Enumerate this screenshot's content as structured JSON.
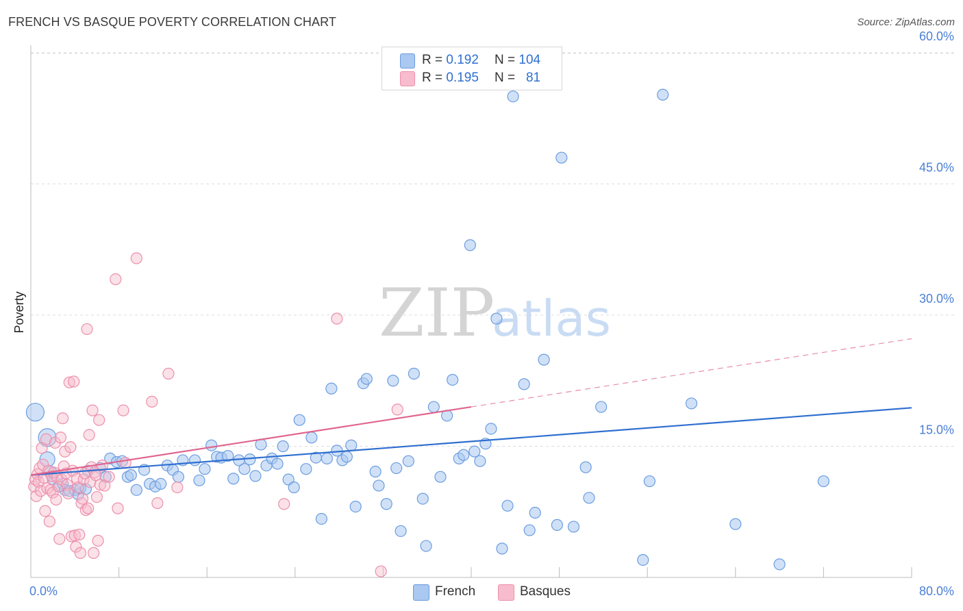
{
  "title": "FRENCH VS BASQUE POVERTY CORRELATION CHART",
  "source": "Source: ZipAtlas.com",
  "watermark": {
    "zip": "ZIP",
    "atlas": "atlas"
  },
  "legend": {
    "rows": [
      {
        "r_label": "R =",
        "r_value": "0.192",
        "n_label": "N =",
        "n_value": "104"
      },
      {
        "r_label": "R =",
        "r_value": "0.195",
        "n_label": "N =",
        "n_value": "81"
      }
    ]
  },
  "bottom_legend": {
    "french": "French",
    "basques": "Basques"
  },
  "colors": {
    "french_fill": "#aac8f0",
    "french_stroke": "#6b9ce0",
    "french_line": "#2f6fd0",
    "basque_fill": "#f7bccd",
    "basque_stroke": "#ec8fab",
    "basque_line": "#e0658e",
    "tick_text": "#4a7fd4",
    "grid": "#dddddd"
  },
  "chart_data": {
    "type": "scatter",
    "title": "FRENCH VS BASQUE POVERTY CORRELATION CHART",
    "xlabel": "",
    "ylabel": "Poverty",
    "xlim": [
      0,
      80
    ],
    "ylim": [
      0,
      63
    ],
    "x_ticks": [
      "0.0%",
      "80.0%"
    ],
    "y_ticks": [
      {
        "value": 15,
        "label": "15.0%"
      },
      {
        "value": 30,
        "label": "30.0%"
      },
      {
        "value": 45,
        "label": "45.0%"
      },
      {
        "value": 60,
        "label": "60.0%"
      }
    ],
    "grid": true,
    "legend_position": "top-center",
    "series": [
      {
        "name": "French",
        "R": 0.192,
        "N": 104,
        "trend": {
          "x0": 0,
          "y0": 11.7,
          "x1": 80,
          "y1": 19.4,
          "solid_to": 80
        },
        "points": [
          [
            0.4,
            18.9,
            13
          ],
          [
            1.5,
            16.0,
            13
          ],
          [
            1.5,
            13.5,
            11
          ],
          [
            1.8,
            12.0,
            9
          ],
          [
            2.0,
            11.2,
            8
          ],
          [
            2.6,
            10.4,
            8
          ],
          [
            2.9,
            10.7,
            8
          ],
          [
            3.1,
            10.0,
            8
          ],
          [
            3.5,
            9.9,
            8
          ],
          [
            4.0,
            10.0,
            8
          ],
          [
            4.3,
            9.5,
            8
          ],
          [
            4.5,
            10.2,
            8
          ],
          [
            5.0,
            10.1,
            8
          ],
          [
            5.2,
            12.2,
            8
          ],
          [
            6.3,
            12.5,
            8
          ],
          [
            6.8,
            11.5,
            8
          ],
          [
            7.2,
            13.6,
            8
          ],
          [
            7.8,
            13.2,
            8
          ],
          [
            8.3,
            13.3,
            8
          ],
          [
            8.8,
            11.5,
            8
          ],
          [
            9.1,
            11.7,
            8
          ],
          [
            9.6,
            10.0,
            8
          ],
          [
            10.3,
            12.3,
            8
          ],
          [
            10.8,
            10.7,
            8
          ],
          [
            11.3,
            10.4,
            8
          ],
          [
            11.8,
            10.7,
            8
          ],
          [
            12.4,
            12.8,
            8
          ],
          [
            12.9,
            12.3,
            8
          ],
          [
            13.4,
            11.5,
            8
          ],
          [
            13.8,
            13.4,
            8
          ],
          [
            14.9,
            13.4,
            8
          ],
          [
            15.3,
            11.1,
            8
          ],
          [
            15.8,
            12.4,
            8
          ],
          [
            16.4,
            15.1,
            8
          ],
          [
            16.9,
            13.8,
            8
          ],
          [
            17.3,
            13.7,
            8
          ],
          [
            17.9,
            13.9,
            8
          ],
          [
            18.4,
            11.3,
            8
          ],
          [
            18.9,
            13.4,
            8
          ],
          [
            19.4,
            12.4,
            8
          ],
          [
            19.9,
            13.5,
            8
          ],
          [
            20.4,
            11.6,
            8
          ],
          [
            20.9,
            15.2,
            8
          ],
          [
            21.4,
            12.8,
            8
          ],
          [
            21.9,
            13.6,
            8
          ],
          [
            22.4,
            13.0,
            8
          ],
          [
            22.9,
            15.0,
            8
          ],
          [
            23.4,
            11.2,
            8
          ],
          [
            23.9,
            10.3,
            8
          ],
          [
            24.4,
            18.0,
            8
          ],
          [
            25.0,
            12.4,
            8
          ],
          [
            25.5,
            16.0,
            8
          ],
          [
            25.9,
            13.7,
            8
          ],
          [
            26.4,
            6.7,
            8
          ],
          [
            26.9,
            13.6,
            8
          ],
          [
            27.3,
            21.6,
            8
          ],
          [
            27.8,
            14.5,
            8
          ],
          [
            28.3,
            13.4,
            8
          ],
          [
            28.7,
            13.8,
            8
          ],
          [
            29.1,
            15.1,
            8
          ],
          [
            29.5,
            8.1,
            8
          ],
          [
            30.2,
            22.2,
            8
          ],
          [
            30.5,
            22.7,
            8
          ],
          [
            31.3,
            12.1,
            8
          ],
          [
            31.6,
            10.5,
            8
          ],
          [
            32.3,
            8.4,
            8
          ],
          [
            32.9,
            22.5,
            8
          ],
          [
            33.2,
            12.5,
            8
          ],
          [
            33.6,
            5.3,
            8
          ],
          [
            34.3,
            13.3,
            8
          ],
          [
            34.8,
            23.3,
            8
          ],
          [
            35.6,
            9.0,
            8
          ],
          [
            35.9,
            3.6,
            8
          ],
          [
            36.6,
            19.5,
            8
          ],
          [
            37.2,
            11.5,
            8
          ],
          [
            37.8,
            18.5,
            8
          ],
          [
            38.3,
            22.6,
            8
          ],
          [
            38.9,
            13.6,
            8
          ],
          [
            39.3,
            14.0,
            8
          ],
          [
            39.9,
            38.0,
            8
          ],
          [
            40.3,
            14.4,
            8
          ],
          [
            40.8,
            13.3,
            8
          ],
          [
            41.3,
            15.3,
            8
          ],
          [
            41.8,
            17.0,
            8
          ],
          [
            42.3,
            29.6,
            8
          ],
          [
            42.8,
            3.3,
            8
          ],
          [
            43.3,
            8.2,
            8
          ],
          [
            43.8,
            55.0,
            8
          ],
          [
            44.8,
            22.1,
            8
          ],
          [
            45.3,
            5.4,
            8
          ],
          [
            45.8,
            7.4,
            8
          ],
          [
            46.6,
            24.9,
            8
          ],
          [
            47.8,
            6.0,
            8
          ],
          [
            48.2,
            48.0,
            8
          ],
          [
            49.3,
            5.8,
            8
          ],
          [
            50.4,
            12.6,
            8
          ],
          [
            50.7,
            9.1,
            8
          ],
          [
            51.8,
            19.5,
            8
          ],
          [
            55.6,
            2.0,
            8
          ],
          [
            56.2,
            11.0,
            8
          ],
          [
            57.4,
            55.2,
            8
          ],
          [
            60.0,
            19.9,
            8
          ],
          [
            64.0,
            6.1,
            8
          ],
          [
            68.0,
            1.5,
            8
          ],
          [
            72.0,
            11.0,
            8
          ]
        ]
      },
      {
        "name": "Basques",
        "R": 0.195,
        "N": 81,
        "trend": {
          "x0": 0,
          "y0": 11.7,
          "x1": 80,
          "y1": 27.3,
          "solid_to": 40
        },
        "points": [
          [
            0.3,
            10.4,
            8
          ],
          [
            0.4,
            11.2,
            8
          ],
          [
            0.5,
            9.3,
            8
          ],
          [
            0.6,
            11.8,
            8
          ],
          [
            0.7,
            10.9,
            8
          ],
          [
            0.8,
            12.5,
            8
          ],
          [
            0.9,
            9.9,
            8
          ],
          [
            1.0,
            14.8,
            8
          ],
          [
            1.1,
            12.9,
            8
          ],
          [
            1.2,
            11.4,
            8
          ],
          [
            1.3,
            7.6,
            8
          ],
          [
            1.4,
            15.8,
            8
          ],
          [
            1.5,
            10.2,
            8
          ],
          [
            1.6,
            12.2,
            8
          ],
          [
            1.7,
            6.4,
            8
          ],
          [
            1.8,
            10.0,
            8
          ],
          [
            1.9,
            11.6,
            8
          ],
          [
            2.0,
            9.7,
            8
          ],
          [
            2.1,
            12.0,
            8
          ],
          [
            2.2,
            15.4,
            8
          ],
          [
            2.3,
            8.9,
            8
          ],
          [
            2.4,
            11.5,
            8
          ],
          [
            2.5,
            10.4,
            8
          ],
          [
            2.6,
            4.4,
            8
          ],
          [
            2.7,
            16.0,
            8
          ],
          [
            2.8,
            11.2,
            8
          ],
          [
            2.9,
            18.2,
            8
          ],
          [
            3.0,
            12.7,
            8
          ],
          [
            3.1,
            14.4,
            8
          ],
          [
            3.2,
            11.9,
            8
          ],
          [
            3.3,
            10.6,
            8
          ],
          [
            3.4,
            9.6,
            8
          ],
          [
            3.5,
            22.3,
            8
          ],
          [
            3.6,
            14.9,
            8
          ],
          [
            3.7,
            4.7,
            8
          ],
          [
            3.8,
            12.2,
            8
          ],
          [
            3.9,
            22.4,
            8
          ],
          [
            4.0,
            4.8,
            8
          ],
          [
            4.1,
            3.5,
            8
          ],
          [
            4.2,
            11.3,
            8
          ],
          [
            4.3,
            10.3,
            8
          ],
          [
            4.4,
            4.9,
            8
          ],
          [
            4.5,
            2.8,
            8
          ],
          [
            4.6,
            8.5,
            8
          ],
          [
            4.7,
            9.0,
            8
          ],
          [
            4.8,
            11.2,
            8
          ],
          [
            4.9,
            11.9,
            8
          ],
          [
            5.0,
            7.7,
            8
          ],
          [
            5.1,
            28.4,
            8
          ],
          [
            5.2,
            7.9,
            8
          ],
          [
            5.3,
            16.3,
            8
          ],
          [
            5.4,
            10.9,
            8
          ],
          [
            5.5,
            12.6,
            8
          ],
          [
            5.6,
            19.1,
            8
          ],
          [
            5.7,
            2.8,
            8
          ],
          [
            5.8,
            12.0,
            8
          ],
          [
            5.9,
            11.7,
            8
          ],
          [
            6.0,
            9.2,
            8
          ],
          [
            6.1,
            4.2,
            8
          ],
          [
            6.2,
            18.0,
            8
          ],
          [
            6.3,
            10.6,
            8
          ],
          [
            6.5,
            12.8,
            8
          ],
          [
            6.7,
            10.5,
            8
          ],
          [
            7.1,
            11.5,
            8
          ],
          [
            7.7,
            34.1,
            8
          ],
          [
            7.9,
            7.9,
            8
          ],
          [
            8.4,
            19.1,
            8
          ],
          [
            8.6,
            13.1,
            8
          ],
          [
            9.6,
            36.5,
            8
          ],
          [
            11.0,
            20.1,
            8
          ],
          [
            11.5,
            8.5,
            8
          ],
          [
            12.5,
            23.3,
            8
          ],
          [
            13.3,
            10.3,
            8
          ],
          [
            23.0,
            8.4,
            8
          ],
          [
            27.8,
            29.6,
            8
          ],
          [
            31.8,
            0.7,
            8
          ],
          [
            33.3,
            19.2,
            8
          ]
        ]
      }
    ]
  }
}
